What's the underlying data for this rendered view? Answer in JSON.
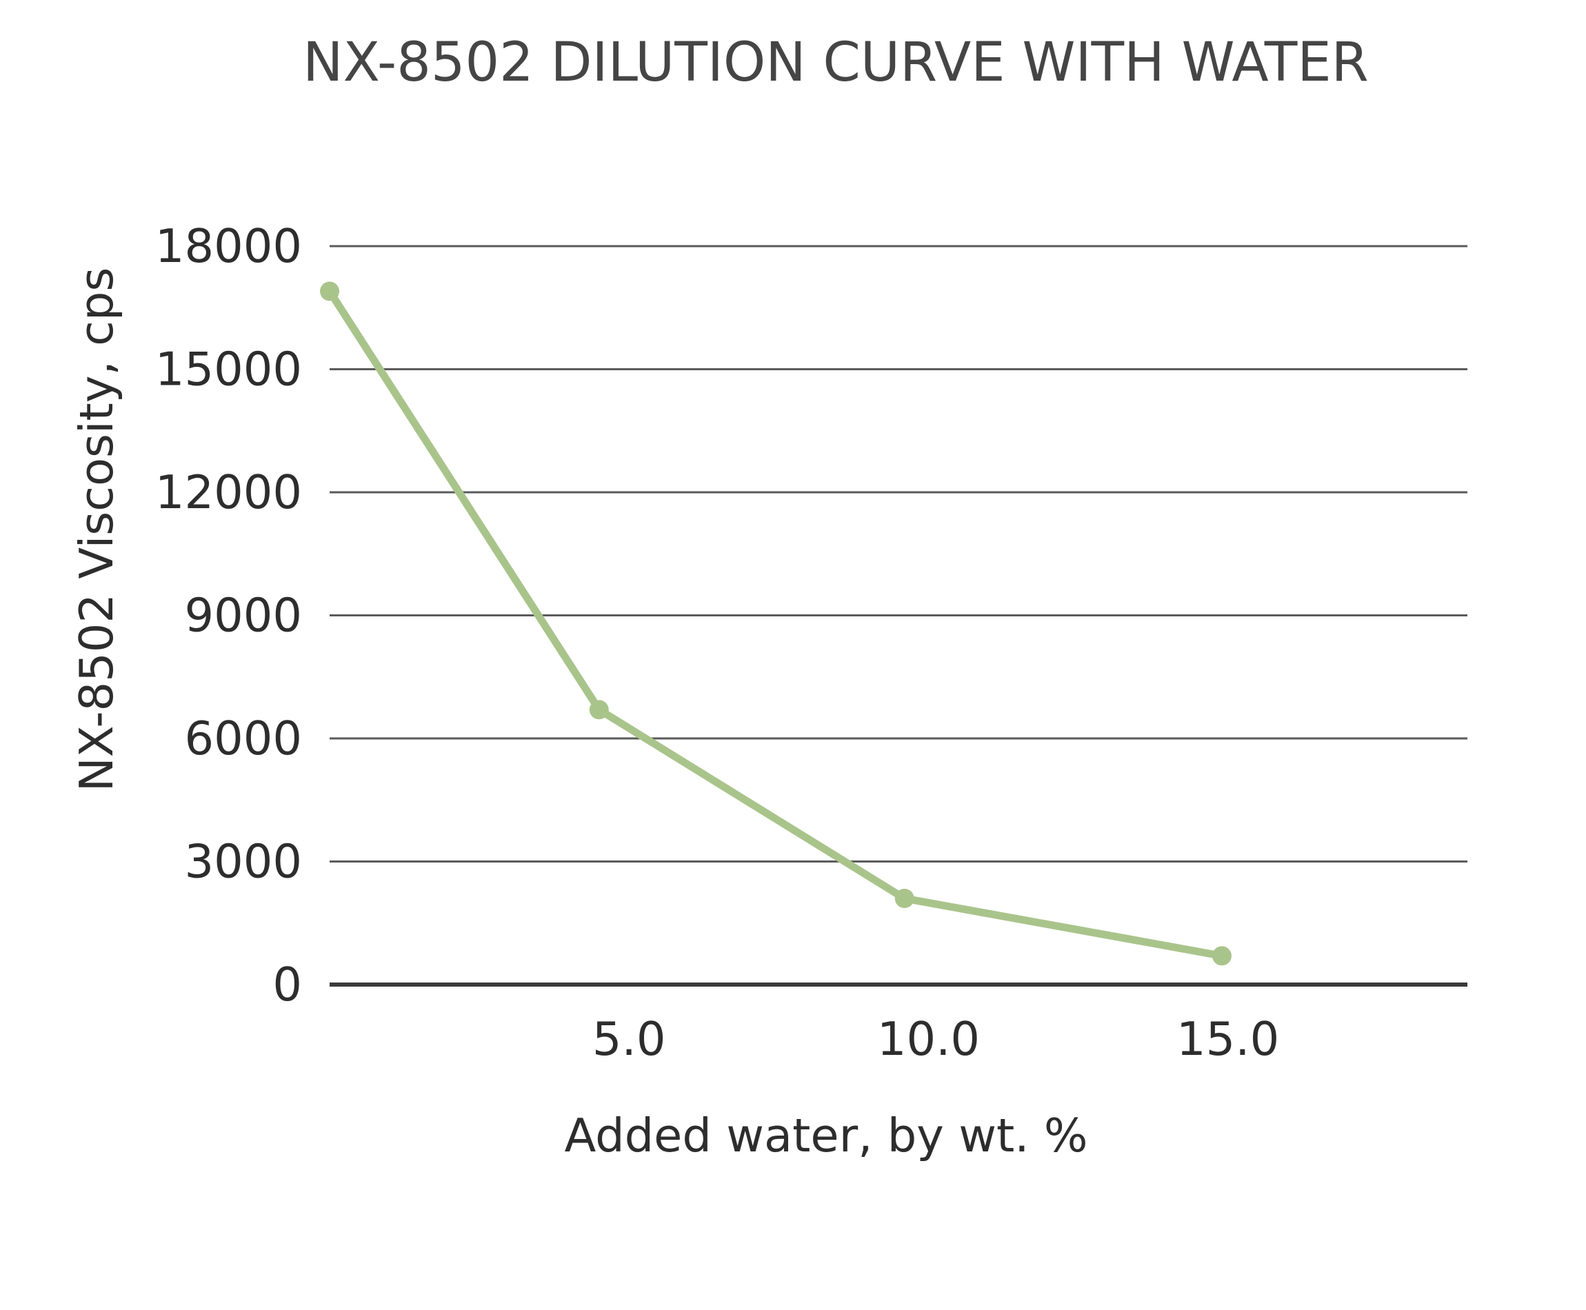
{
  "chart_data": {
    "type": "line",
    "title": "NX-8502 DILUTION CURVE WITH WATER",
    "xlabel": "Added water, by wt. %",
    "ylabel": "NX-8502 Viscosity, cps",
    "xlim": [
      0,
      19
    ],
    "ylim": [
      0,
      18000
    ],
    "x_ticks": [
      "5.0",
      "10.0",
      "15.0"
    ],
    "y_ticks": [
      "0",
      "3000",
      "6000",
      "9000",
      "12000",
      "15000",
      "18000"
    ],
    "grid": true,
    "legend": "none",
    "series": [
      {
        "color": "#a9c48b",
        "x": [
          0,
          4.5,
          9.6,
          14.9
        ],
        "y": [
          16900,
          6700,
          2100,
          700
        ]
      }
    ]
  }
}
